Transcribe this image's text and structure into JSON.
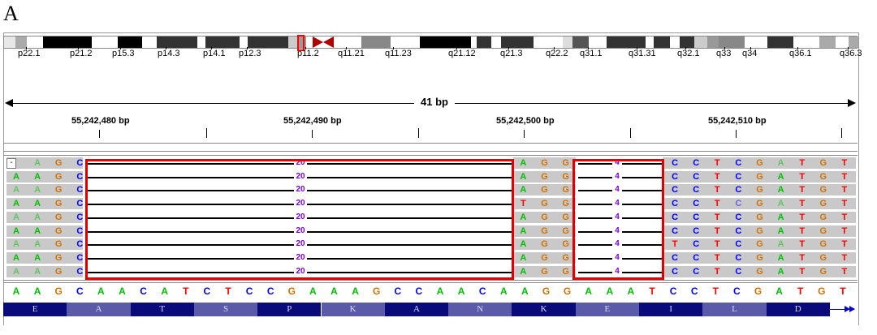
{
  "panel_label": "A",
  "ideogram_labels": [
    "p22.1",
    "p21.2",
    "p15.3",
    "p14.3",
    "p14.1",
    "p12.3",
    "p11.2",
    "q11.21",
    "q11.23",
    "q21.12",
    "q21.3",
    "q22.2",
    "q31.1",
    "q31.31",
    "q32.1",
    "q33",
    "q34",
    "q36.1",
    "q36.3"
  ],
  "ruler": {
    "length_label": "41 bp"
  },
  "positions": [
    "55,242,480 bp",
    "55,242,490 bp",
    "55,242,500 bp",
    "55,242,510 bp"
  ],
  "reference_sequence": "AAGCAACATCTCCGAAAGCCAACAAGGAAATCCTCGATGT",
  "read_prefix": [
    "AAGC",
    "AAGC",
    "AAGC",
    "AAGC",
    "AAGC",
    "AAGC",
    "AAGC",
    "AAGC",
    "AAGC"
  ],
  "read_middle": [
    "AGG",
    "AGG",
    "AGG",
    "TGG",
    "AGG",
    "AGG",
    "AGG",
    "AGG",
    "AGG"
  ],
  "read_suffix": [
    "CCTCGATGT",
    "CCTCGATGT",
    "CCTCGATGT",
    "CCTCGATGT",
    "CCTCGATGT",
    "CCTCGATGT",
    "TCTCGATGT",
    "CCTCGATGT",
    "CCTCGATGT"
  ],
  "deletion_labels": {
    "first": "20",
    "second": "4"
  },
  "first_row_marker": "-",
  "amino_acids": [
    "E",
    "A",
    "T",
    "S",
    "P",
    "K",
    "A",
    "N",
    "K",
    "E",
    "I",
    "L",
    "D"
  ],
  "colors": {
    "A": "#00c000",
    "C": "#0000ff",
    "G": "#d17105",
    "T": "#ff0000",
    "box": "#e00000",
    "aa_dark": "#0a0a7a",
    "aa_light": "#5a5aa8"
  }
}
